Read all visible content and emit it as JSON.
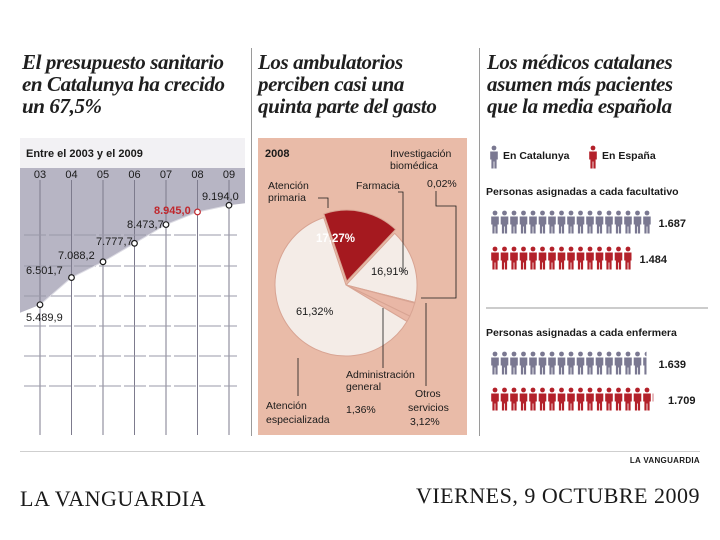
{
  "titles": {
    "panel1": [
      "El presupuesto sanitario",
      "en Catalunya ha crecido",
      "un 67,5%"
    ],
    "panel2": [
      "Los ambulatorios",
      "perciben casi una",
      "quinta parte del gasto"
    ],
    "panel3": [
      "Los médicos catalanes",
      "asumen más pacientes",
      "que la media española"
    ]
  },
  "chart_data": [
    {
      "type": "area",
      "title": "El presupuesto sanitario en Catalunya ha crecido un 67,5%",
      "subtitle": "Entre el 2003 y el 2009",
      "categories": [
        "03",
        "04",
        "05",
        "06",
        "07",
        "08",
        "09"
      ],
      "values": [
        5489.9,
        6501.7,
        7088.2,
        7777.7,
        8473.7,
        8945.0,
        9194.0
      ],
      "labels": [
        "5.489,9",
        "6.501,7",
        "7.088,2",
        "7.777,7",
        "8.473,7",
        "8.945,0",
        "9.194,0"
      ],
      "highlight_index": 5,
      "ylim": [
        4400,
        9800
      ],
      "colors": {
        "fill": "#b7b5c4",
        "background": "#7f7c93",
        "highlight": "#c0272d"
      }
    },
    {
      "type": "pie",
      "title": "Los ambulatorios perciben casi una quinta parte del gasto",
      "subtitle": "2008",
      "slices": [
        {
          "name": "Atención primaria",
          "value": 17.27,
          "label": "17,27%",
          "color": "#a5191f"
        },
        {
          "name": "Farmacia",
          "value": 16.91,
          "label": "16,91%",
          "color": "#f4ece7"
        },
        {
          "name": "Investigación biomédica",
          "value": 0.02,
          "label": "0,02%",
          "color": "#e9b7a6"
        },
        {
          "name": "Otros servicios",
          "value": 3.12,
          "label": "3,12%",
          "color": "#e9b7a6"
        },
        {
          "name": "Administración general",
          "value": 1.36,
          "label": "1,36%",
          "color": "#e9b7a6"
        },
        {
          "name": "Atención especializada",
          "value": 61.32,
          "label": "61,32%",
          "color": "#f4ece7"
        }
      ],
      "colors": {
        "background": "#e9bba8"
      }
    },
    {
      "type": "bar",
      "title": "Los médicos catalanes asumen más pacientes que la media española",
      "legend": [
        "En Catalunya",
        "En España"
      ],
      "groups": [
        {
          "name": "Personas asignadas a cada facultativo",
          "series": [
            {
              "name": "En Catalunya",
              "value": 1687,
              "label": "1.687"
            },
            {
              "name": "En España",
              "value": 1484,
              "label": "1.484"
            }
          ]
        },
        {
          "name": "Personas asignadas a cada enfermera",
          "series": [
            {
              "name": "En Catalunya",
              "value": 1639,
              "label": "1.639"
            },
            {
              "name": "En España",
              "value": 1709,
              "label": "1.709"
            }
          ]
        }
      ],
      "colors": {
        "catalunya": "#7a7891",
        "espana": "#b3212a"
      }
    }
  ],
  "credit": "LA VANGUARDIA",
  "footer": {
    "newspaper": "LA VANGUARDIA",
    "date": "VIERNES, 9 OCTUBRE 2009"
  }
}
